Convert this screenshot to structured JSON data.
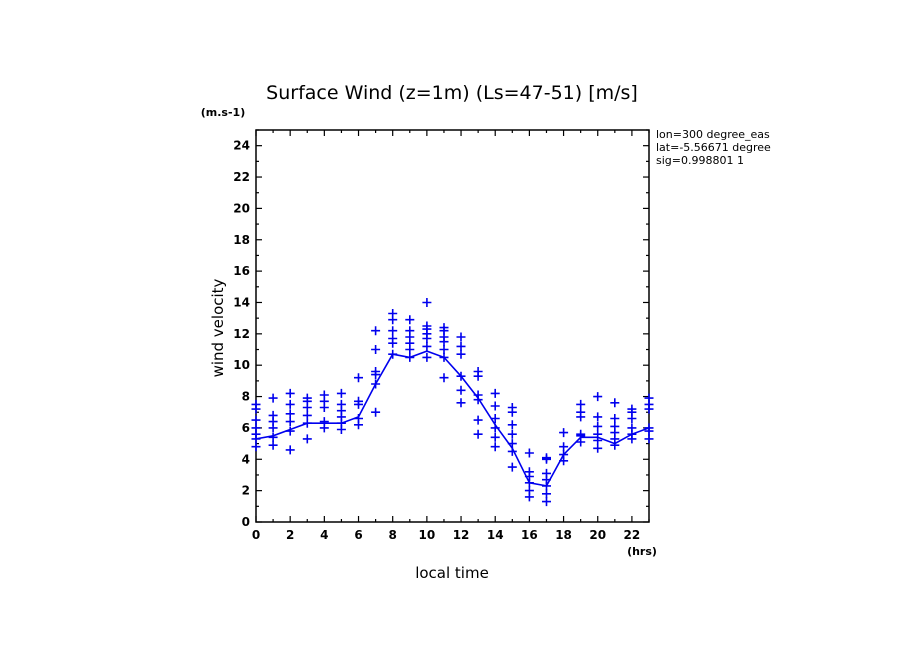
{
  "chart_data": {
    "type": "scatter",
    "title": "Surface Wind (z=1m) (Ls=47-51) [m/s]",
    "xlabel": "local time",
    "ylabel": "wind velocity",
    "x_unit": "(hrs)",
    "y_unit": "(m.s-1)",
    "xlim": [
      0,
      23
    ],
    "ylim": [
      0,
      25
    ],
    "x_ticks": [
      0,
      2,
      4,
      6,
      8,
      10,
      12,
      14,
      16,
      18,
      20,
      22
    ],
    "y_ticks": [
      0,
      2,
      4,
      6,
      8,
      10,
      12,
      14,
      16,
      18,
      20,
      22,
      24
    ],
    "annotations": [
      "lon=300 degree_eas",
      "lat=-5.56671 degree",
      "sig=0.998801 1"
    ],
    "color": "#0000ee",
    "series": [
      {
        "type": "line",
        "x": [
          0,
          1,
          2,
          3,
          4,
          5,
          6,
          7,
          8,
          9,
          10,
          11,
          12,
          13,
          14,
          15,
          16,
          17,
          18,
          19,
          20,
          21,
          22,
          23
        ],
        "y": [
          5.3,
          5.5,
          5.9,
          6.3,
          6.3,
          6.3,
          6.7,
          8.8,
          10.7,
          10.5,
          10.9,
          10.5,
          9.3,
          7.9,
          6.2,
          4.7,
          2.5,
          2.3,
          4.3,
          5.4,
          5.4,
          5.0,
          5.6,
          6.0
        ]
      },
      {
        "type": "scatter",
        "points": [
          [
            0,
            4.8
          ],
          [
            0,
            5.3
          ],
          [
            0,
            5.6
          ],
          [
            0,
            6.0
          ],
          [
            0,
            6.5
          ],
          [
            0,
            7.2
          ],
          [
            0,
            7.5
          ],
          [
            1,
            4.9
          ],
          [
            1,
            5.4
          ],
          [
            1,
            6.0
          ],
          [
            1,
            6.4
          ],
          [
            1,
            6.8
          ],
          [
            1,
            7.9
          ],
          [
            2,
            4.6
          ],
          [
            2,
            5.8
          ],
          [
            2,
            6.4
          ],
          [
            2,
            6.9
          ],
          [
            2,
            7.5
          ],
          [
            2,
            8.2
          ],
          [
            3,
            5.3
          ],
          [
            3,
            6.3
          ],
          [
            3,
            6.8
          ],
          [
            3,
            7.3
          ],
          [
            3,
            7.7
          ],
          [
            3,
            7.9
          ],
          [
            4,
            6.0
          ],
          [
            4,
            6.4
          ],
          [
            4,
            7.3
          ],
          [
            4,
            7.7
          ],
          [
            4,
            8.1
          ],
          [
            5,
            5.9
          ],
          [
            5,
            6.3
          ],
          [
            5,
            6.7
          ],
          [
            5,
            7.1
          ],
          [
            5,
            7.5
          ],
          [
            5,
            8.2
          ],
          [
            6,
            6.2
          ],
          [
            6,
            6.6
          ],
          [
            6,
            7.5
          ],
          [
            6,
            7.7
          ],
          [
            6,
            9.2
          ],
          [
            7,
            7.0
          ],
          [
            7,
            8.8
          ],
          [
            7,
            9.4
          ],
          [
            7,
            9.6
          ],
          [
            7,
            11.0
          ],
          [
            7,
            12.2
          ],
          [
            8,
            10.7
          ],
          [
            8,
            11.4
          ],
          [
            8,
            11.7
          ],
          [
            8,
            12.2
          ],
          [
            8,
            12.9
          ],
          [
            8,
            13.3
          ],
          [
            9,
            10.5
          ],
          [
            9,
            11.0
          ],
          [
            9,
            11.4
          ],
          [
            9,
            11.8
          ],
          [
            9,
            12.2
          ],
          [
            9,
            12.9
          ],
          [
            10,
            10.5
          ],
          [
            10,
            11.2
          ],
          [
            10,
            11.7
          ],
          [
            10,
            12.0
          ],
          [
            10,
            12.3
          ],
          [
            10,
            12.5
          ],
          [
            10,
            14.0
          ],
          [
            11,
            9.2
          ],
          [
            11,
            10.5
          ],
          [
            11,
            11.0
          ],
          [
            11,
            11.5
          ],
          [
            11,
            11.8
          ],
          [
            11,
            12.2
          ],
          [
            11,
            12.4
          ],
          [
            12,
            7.6
          ],
          [
            12,
            8.4
          ],
          [
            12,
            9.3
          ],
          [
            12,
            10.7
          ],
          [
            12,
            11.2
          ],
          [
            12,
            11.8
          ],
          [
            13,
            5.6
          ],
          [
            13,
            6.5
          ],
          [
            13,
            7.8
          ],
          [
            13,
            8.1
          ],
          [
            13,
            9.3
          ],
          [
            13,
            9.6
          ],
          [
            14,
            4.8
          ],
          [
            14,
            5.4
          ],
          [
            14,
            6.0
          ],
          [
            14,
            6.6
          ],
          [
            14,
            7.4
          ],
          [
            14,
            8.2
          ],
          [
            15,
            3.5
          ],
          [
            15,
            4.5
          ],
          [
            15,
            5.0
          ],
          [
            15,
            5.6
          ],
          [
            15,
            6.2
          ],
          [
            15,
            7.0
          ],
          [
            15,
            7.3
          ],
          [
            16,
            1.6
          ],
          [
            16,
            2.0
          ],
          [
            16,
            2.5
          ],
          [
            16,
            2.9
          ],
          [
            16,
            3.2
          ],
          [
            16,
            4.4
          ],
          [
            17,
            1.3
          ],
          [
            17,
            1.8
          ],
          [
            17,
            2.3
          ],
          [
            17,
            2.7
          ],
          [
            17,
            3.1
          ],
          [
            17,
            4.0
          ],
          [
            17,
            4.1
          ],
          [
            18,
            3.9
          ],
          [
            18,
            4.3
          ],
          [
            18,
            4.8
          ],
          [
            18,
            5.7
          ],
          [
            19,
            5.1
          ],
          [
            19,
            5.5
          ],
          [
            19,
            5.6
          ],
          [
            19,
            6.7
          ],
          [
            19,
            7.0
          ],
          [
            19,
            7.5
          ],
          [
            20,
            4.7
          ],
          [
            20,
            5.2
          ],
          [
            20,
            5.6
          ],
          [
            20,
            6.1
          ],
          [
            20,
            6.7
          ],
          [
            20,
            8.0
          ],
          [
            21,
            4.9
          ],
          [
            21,
            5.3
          ],
          [
            21,
            5.7
          ],
          [
            21,
            6.1
          ],
          [
            21,
            6.6
          ],
          [
            21,
            7.6
          ],
          [
            22,
            5.3
          ],
          [
            22,
            5.6
          ],
          [
            22,
            6.0
          ],
          [
            22,
            6.6
          ],
          [
            22,
            7.0
          ],
          [
            22,
            7.2
          ],
          [
            23,
            5.3
          ],
          [
            23,
            5.8
          ],
          [
            23,
            6.0
          ],
          [
            23,
            7.2
          ],
          [
            23,
            7.5
          ],
          [
            23,
            7.9
          ]
        ]
      }
    ]
  }
}
